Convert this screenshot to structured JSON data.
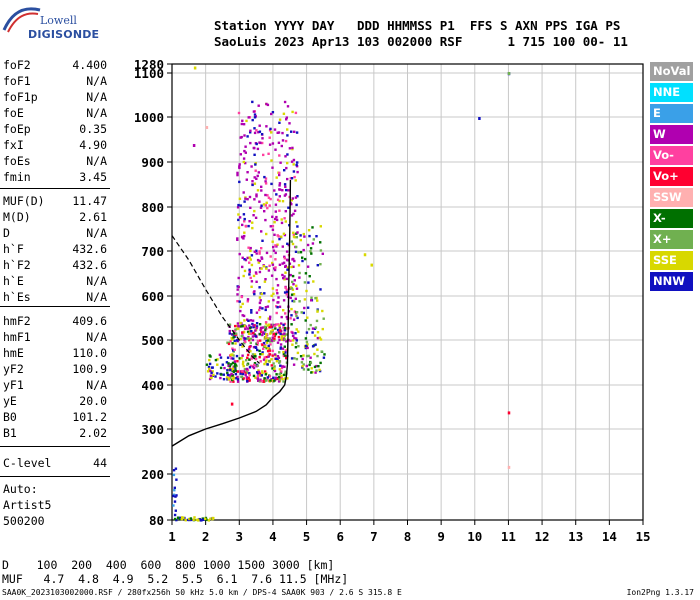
{
  "logo": {
    "line1": "Lowell",
    "line2": "DIGISONDE"
  },
  "header": {
    "line1": "Station YYYY DAY   DDD HHMMSS P1  FFS S AXN PPS IGA PS",
    "line2": "SaoLuis 2023 Apr13 103 002000 RSF      1 715 100 00- 11"
  },
  "params": [
    {
      "label": "foF2",
      "value": "4.400"
    },
    {
      "label": "foF1",
      "value": "N/A"
    },
    {
      "label": "foF1p",
      "value": "N/A"
    },
    {
      "label": "foE",
      "value": "N/A"
    },
    {
      "label": "foEp",
      "value": "0.35"
    },
    {
      "label": "fxI",
      "value": "4.90"
    },
    {
      "label": "foEs",
      "value": "N/A"
    },
    {
      "label": "fmin",
      "value": "3.45"
    },
    {
      "label": "MUF(D)",
      "value": "11.47"
    },
    {
      "label": "M(D)",
      "value": "2.61"
    },
    {
      "label": "D",
      "value": "N/A"
    },
    {
      "label": "h`F",
      "value": "432.6"
    },
    {
      "label": "h`F2",
      "value": "432.6"
    },
    {
      "label": "h`E",
      "value": "N/A"
    },
    {
      "label": "h`Es",
      "value": "N/A"
    },
    {
      "label": "hmF2",
      "value": "409.6"
    },
    {
      "label": "hmF1",
      "value": "N/A"
    },
    {
      "label": "hmE",
      "value": "110.0"
    },
    {
      "label": "yF2",
      "value": "100.9"
    },
    {
      "label": "yF1",
      "value": "N/A"
    },
    {
      "label": "yE",
      "value": "20.0"
    },
    {
      "label": "B0",
      "value": "101.2"
    },
    {
      "label": "B1",
      "value": "2.02"
    },
    {
      "label": "C-level",
      "value": "44"
    }
  ],
  "auto": {
    "line1": "Auto:",
    "line2": "Artist5",
    "line3": "500200"
  },
  "legend": [
    {
      "label": "NoVal",
      "color": "#a0a0a0"
    },
    {
      "label": "NNE",
      "color": "#00e0ff"
    },
    {
      "label": "E",
      "color": "#3aa0e8"
    },
    {
      "label": "W",
      "color": "#b000b0"
    },
    {
      "label": "Vo-",
      "color": "#ff40a0"
    },
    {
      "label": "Vo+",
      "color": "#ff0030"
    },
    {
      "label": "SSW",
      "color": "#ffb0b0"
    },
    {
      "label": "X-",
      "color": "#007000"
    },
    {
      "label": "X+",
      "color": "#70b050"
    },
    {
      "label": "SSE",
      "color": "#d8d800"
    },
    {
      "label": "NNW",
      "color": "#1010c0"
    }
  ],
  "footer": {
    "d_row": "D    100  200  400  600  800 1000 1500 3000 [km]",
    "muf_row": "MUF   4.7  4.8  4.9  5.2  5.5  6.1  7.6 11.5 [MHz]",
    "fileinfo": "SAA0K_2023103002000.RSF / 280fx256h 50 kHz 5.0 km / DPS-4 SAA0K 903 / 2.6 S 315.8 E",
    "version": "Ion2Png 1.3.17"
  },
  "chart_data": {
    "type": "scatter",
    "xlim": [
      1,
      15
    ],
    "ylim": [
      80,
      1280
    ],
    "x_ticks": [
      "1",
      "2",
      "3",
      "4",
      "5",
      "6",
      "7",
      "8",
      "9",
      "10",
      "11",
      "12",
      "13",
      "14",
      "15"
    ],
    "y_ticks": [
      "80",
      "200",
      "300",
      "400",
      "500",
      "600",
      "700",
      "800",
      "900",
      "1000",
      "1100",
      "1280"
    ],
    "y_tick_values": [
      80,
      200,
      300,
      400,
      500,
      600,
      700,
      800,
      900,
      1000,
      1100,
      1280
    ],
    "grid": true,
    "profile_line": [
      [
        1.0,
        262
      ],
      [
        1.5,
        285
      ],
      [
        2.0,
        300
      ],
      [
        2.5,
        312
      ],
      [
        3.0,
        325
      ],
      [
        3.5,
        340
      ],
      [
        3.8,
        355
      ],
      [
        4.0,
        372
      ],
      [
        4.2,
        385
      ],
      [
        4.35,
        400
      ],
      [
        4.4,
        420
      ],
      [
        4.43,
        445
      ],
      [
        4.45,
        520
      ],
      [
        4.47,
        620
      ],
      [
        4.5,
        745
      ],
      [
        4.52,
        860
      ]
    ],
    "dashed_line": [
      [
        1.0,
        735
      ],
      [
        1.5,
        680
      ],
      [
        2.0,
        615
      ],
      [
        2.5,
        552
      ],
      [
        3.0,
        500
      ],
      [
        3.4,
        462
      ],
      [
        3.6,
        448
      ]
    ],
    "echo_clusters": [
      {
        "x_range": [
          2.9,
          4.7
        ],
        "y_range": [
          500,
          1040
        ],
        "count": 520,
        "colors": [
          "#b000b0",
          "#b000b0",
          "#b000b0",
          "#ff40a0",
          "#1010c0",
          "#d8d800"
        ]
      },
      {
        "x_range": [
          2.6,
          4.4
        ],
        "y_range": [
          410,
          540
        ],
        "count": 420,
        "colors": [
          "#b000b0",
          "#ff40a0",
          "#1010c0",
          "#d8d800",
          "#007000",
          "#70b050",
          "#ff0030"
        ]
      },
      {
        "x_range": [
          4.5,
          5.5
        ],
        "y_range": [
          430,
          760
        ],
        "count": 150,
        "colors": [
          "#d8d800",
          "#007000",
          "#1010c0",
          "#b000b0",
          "#70b050"
        ]
      },
      {
        "x_range": [
          2.0,
          2.9
        ],
        "y_range": [
          415,
          470
        ],
        "count": 60,
        "colors": [
          "#b000b0",
          "#d8d800",
          "#007000",
          "#1010c0"
        ]
      },
      {
        "x_range": [
          1.0,
          2.2
        ],
        "y_range": [
          82,
          90
        ],
        "count": 40,
        "colors": [
          "#1010c0",
          "#007000",
          "#d8d800"
        ]
      },
      {
        "x_range": [
          1.0,
          1.1
        ],
        "y_range": [
          95,
          215
        ],
        "count": 14,
        "colors": [
          "#1010c0",
          "#3aa0e8"
        ]
      }
    ],
    "isolated_points": [
      {
        "x": 10.1,
        "y": 1000,
        "color": "#1010c0"
      },
      {
        "x": 10.98,
        "y": 1115,
        "color": "#1010c0"
      },
      {
        "x": 10.98,
        "y": 1120,
        "color": "#70b050"
      },
      {
        "x": 10.98,
        "y": 340,
        "color": "#ff0030"
      },
      {
        "x": 10.98,
        "y": 218,
        "color": "#ffb0b0"
      },
      {
        "x": 2.75,
        "y": 360,
        "color": "#ff0030"
      },
      {
        "x": 1.62,
        "y": 940,
        "color": "#b000b0"
      },
      {
        "x": 1.65,
        "y": 1230,
        "color": "#d8d800"
      },
      {
        "x": 2.0,
        "y": 980,
        "color": "#ffb0b0"
      },
      {
        "x": 6.7,
        "y": 695,
        "color": "#d8d800"
      },
      {
        "x": 6.9,
        "y": 672,
        "color": "#d8d800"
      }
    ]
  }
}
